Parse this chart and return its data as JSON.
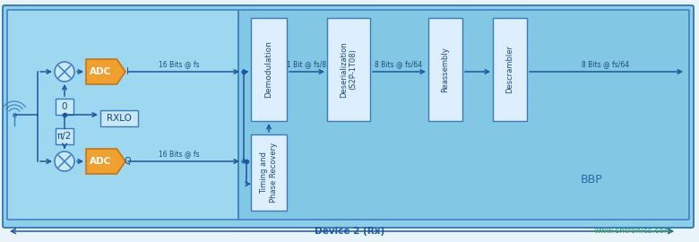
{
  "fig_w": 7.8,
  "fig_h": 2.7,
  "dpi": 100,
  "bg_main": "#8ecfe8",
  "bg_left": "#9ed8f0",
  "bg_right": "#82c8e4",
  "block_light": "#c8e8f5",
  "block_white": "#ddeeff",
  "block_orange": "#f0a030",
  "border_blue": "#3a7abf",
  "text_dark": "#1a4a7a",
  "line_dark": "#2055a0",
  "website_green": "#2aaa50",
  "fig_bg": "#e8f4fa",
  "note_device": "Device 2 (Rx)",
  "note_website": "www.cntronics.com",
  "note_bbp": "BBP",
  "lbl_i": "I",
  "lbl_q": "Q",
  "lbl_0": "0",
  "lbl_pi2": "π/2",
  "lbl_rxlo": "RXLO",
  "lbl_adc": "ADC",
  "lbl_demod": "Demodulation",
  "lbl_tpr": "Timing and\nPhase Recovery",
  "lbl_des": "Deserialization\n(S2P-1T08)",
  "lbl_rea": "Reassembly",
  "lbl_desc": "Descrambler",
  "sig_16fs_1": "16 Bits @ fs",
  "sig_16fs_2": "16 Bits @ fs",
  "sig_1fs8": "1 Bit @ fs/8",
  "sig_8fs64_1": "8 Bits @ fs/64",
  "sig_8fs64_2": "8 Bits @ fs/64"
}
